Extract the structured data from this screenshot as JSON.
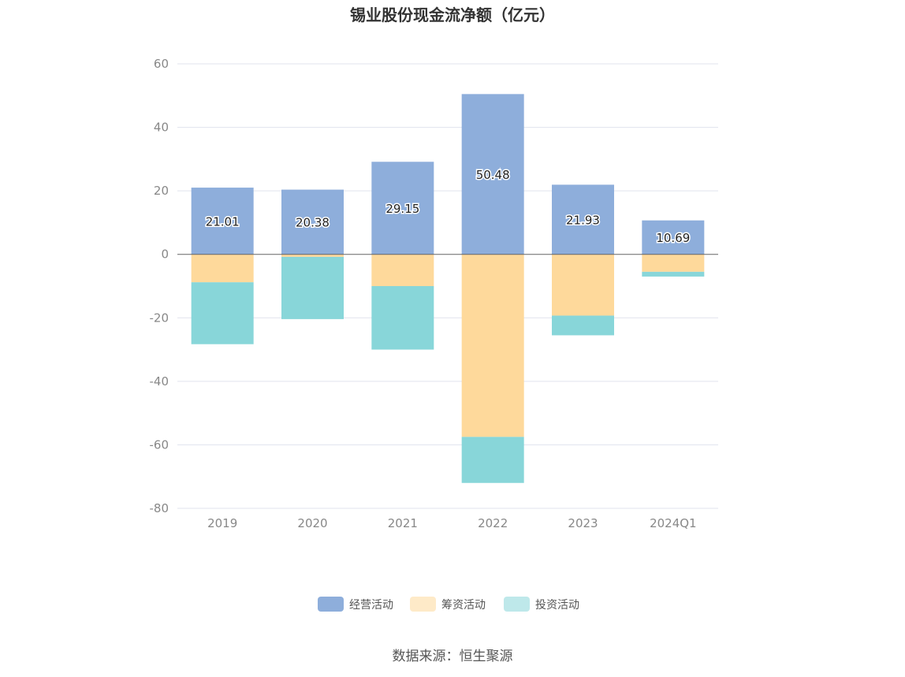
{
  "chart_data": {
    "type": "bar",
    "stacked": true,
    "title": "锡业股份现金流净额（亿元）",
    "categories": [
      "2019",
      "2020",
      "2021",
      "2022",
      "2023",
      "2024Q1"
    ],
    "ylim": [
      -80,
      60
    ],
    "yticks": [
      60,
      40,
      20,
      0,
      -20,
      -40,
      -60,
      -80
    ],
    "grid": true,
    "legend_position": "bottom",
    "series": [
      {
        "name": "经营活动",
        "color": "#8eaedb",
        "values": [
          21.01,
          20.38,
          29.15,
          50.48,
          21.93,
          10.69
        ],
        "show_labels": true
      },
      {
        "name": "筹资活动",
        "color": "#fed99b",
        "values": [
          -8.8,
          -0.8,
          -10.0,
          -57.5,
          -19.3,
          -5.5
        ],
        "show_labels": false
      },
      {
        "name": "投资活动",
        "color": "#88d6d9",
        "values": [
          -19.5,
          -19.6,
          -20.0,
          -14.5,
          -6.2,
          -1.5
        ],
        "show_labels": false
      }
    ],
    "source": "数据来源：恒生聚源"
  }
}
